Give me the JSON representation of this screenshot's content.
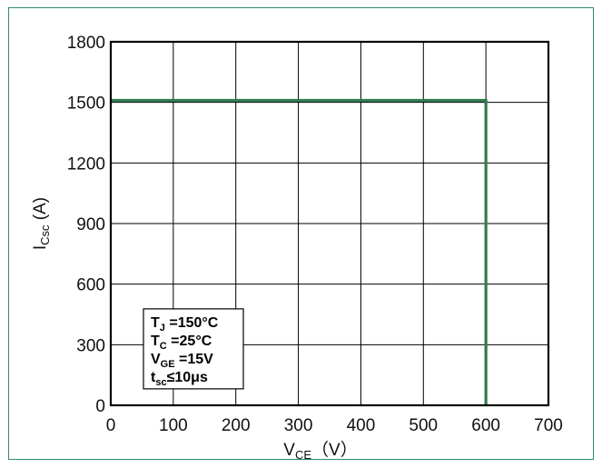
{
  "chart_data": {
    "type": "line",
    "xlabel": "VCE（V）",
    "ylabel": "ICsc (A)",
    "xlim": [
      0,
      700
    ],
    "ylim": [
      0,
      1800
    ],
    "x_ticks": [
      "0",
      "100",
      "200",
      "300",
      "400",
      "500",
      "600",
      "700"
    ],
    "y_ticks": [
      "0",
      "300",
      "600",
      "900",
      "1200",
      "1500",
      "1800"
    ],
    "grid": true,
    "series": [
      {
        "x": [
          0,
          600,
          600
        ],
        "y": [
          1510,
          1510,
          0
        ],
        "color": "#2e7d4f"
      }
    ],
    "annotation": {
      "placement": "bottom-left",
      "lines": [
        {
          "main": "T",
          "sub": "J",
          "rest": " =150°C"
        },
        {
          "main": "T",
          "sub": "C",
          "rest": " =25°C"
        },
        {
          "main": "V",
          "sub": "GE",
          "rest": " =15V"
        },
        {
          "main": "t",
          "sub": "sc",
          "rest": "≤10μs"
        }
      ]
    }
  },
  "colors": {
    "border": "#2e8b6e",
    "series": "#2e7d4f",
    "grid": "#000000"
  }
}
